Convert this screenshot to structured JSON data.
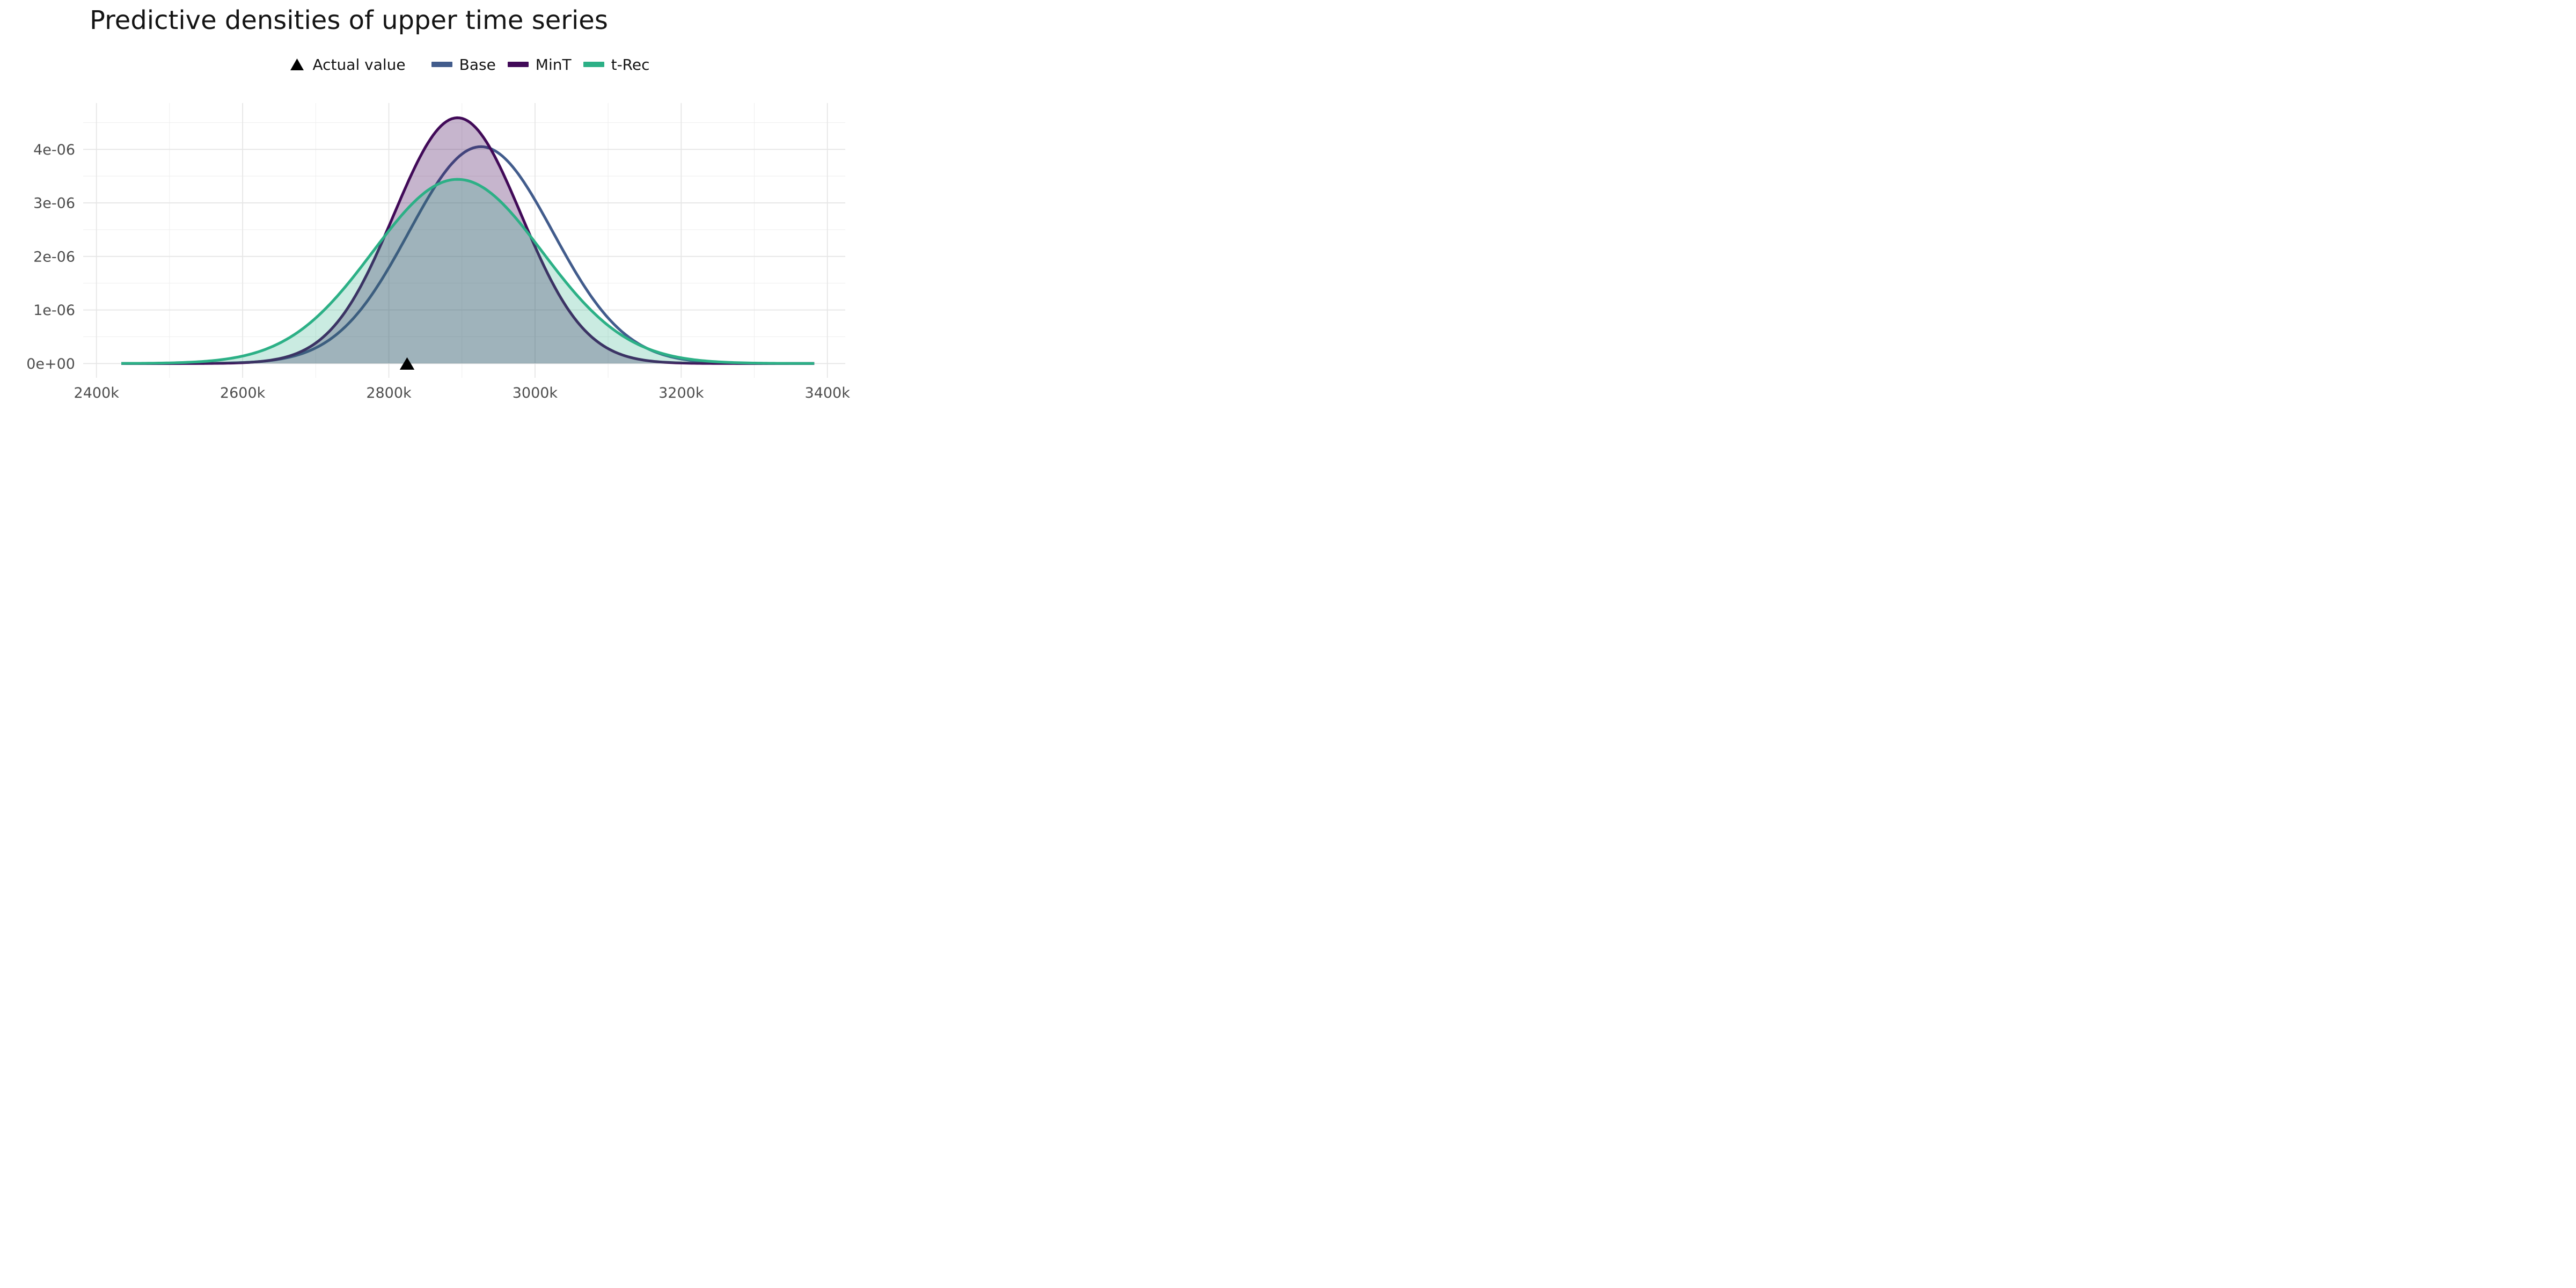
{
  "title": "Predictive densities of upper time series",
  "legend": {
    "actual": {
      "label": "Actual value",
      "marker": "triangle-up",
      "color": "#000000"
    },
    "series": [
      {
        "label": "Base",
        "color": "#425c8c"
      },
      {
        "label": "MinT",
        "color": "#410a58"
      },
      {
        "label": "t-Rec",
        "color": "#2cb086"
      }
    ]
  },
  "chart_data": {
    "type": "area",
    "subtype": "density-curves",
    "title": "Predictive densities of upper time series",
    "xlabel": "",
    "ylabel": "",
    "grid": "on",
    "legend_position": "top-center",
    "x_axis": {
      "tick_labels": [
        "2400k",
        "2600k",
        "2800k",
        "3000k",
        "3200k",
        "3400k"
      ],
      "tick_values_k": [
        2400,
        2600,
        2800,
        3000,
        3200,
        3400
      ],
      "range_k": [
        2382,
        3424
      ]
    },
    "y_axis": {
      "tick_labels": [
        "0e+00",
        "1e-06",
        "2e-06",
        "3e-06",
        "4e-06"
      ],
      "tick_values_e6": [
        0,
        1,
        2,
        3,
        4
      ],
      "range_e6": [
        0,
        4.87
      ]
    },
    "curve_span_k": [
      2434,
      3382
    ],
    "series": [
      {
        "name": "Base",
        "color": "#425c8c",
        "fill": "none",
        "mean_k": 2926,
        "sd_k": 98.5,
        "peak_density": 4.05e-06
      },
      {
        "name": "MinT",
        "color": "#410a58",
        "fill": "rgba(65,10,88,0.30)",
        "mean_k": 2894,
        "sd_k": 87,
        "peak_density": 4.59e-06
      },
      {
        "name": "t-Rec",
        "color": "#2cb086",
        "fill": "rgba(44,176,134,0.25)",
        "mean_k": 2894,
        "sd_k": 116,
        "peak_density": 3.44e-06
      }
    ],
    "actual_value": {
      "label": "Actual value",
      "x_k": 2825,
      "marker": "triangle-up",
      "color": "#000000"
    }
  }
}
